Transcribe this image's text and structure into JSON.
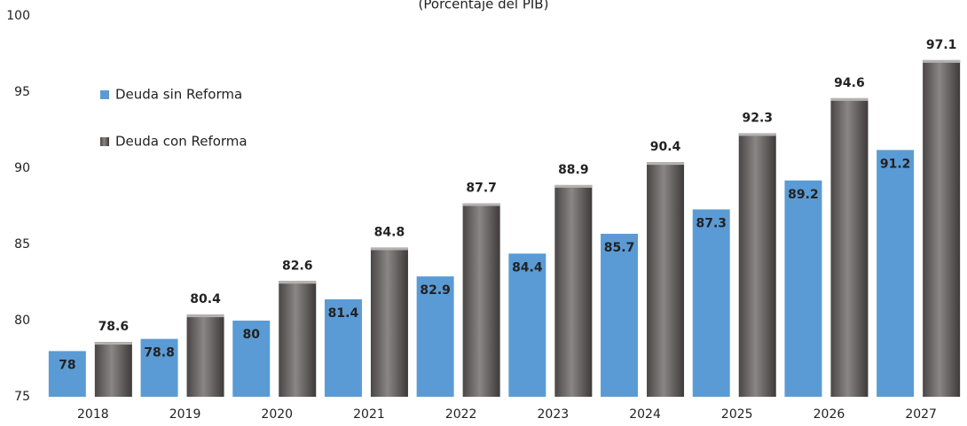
{
  "chart_data": {
    "type": "bar",
    "subtitle": "(Porcentaje del PIB)",
    "categories": [
      "2018",
      "2019",
      "2020",
      "2021",
      "2022",
      "2023",
      "2024",
      "2025",
      "2026",
      "2027"
    ],
    "series": [
      {
        "name": "Deuda sin Reforma",
        "color": "#5b9bd5",
        "values": [
          78,
          78.8,
          80,
          81.4,
          82.9,
          84.4,
          85.7,
          87.3,
          89.2,
          91.2
        ]
      },
      {
        "name": "Deuda con Reforma",
        "color": "#6f6b6b",
        "values": [
          78.6,
          80.4,
          82.6,
          84.8,
          87.7,
          88.9,
          90.4,
          92.3,
          94.6,
          97.1
        ]
      }
    ],
    "ylim": [
      75,
      100
    ],
    "yticks": [
      75,
      80,
      85,
      90,
      95,
      100
    ],
    "grid": false,
    "legend": "upper left"
  }
}
